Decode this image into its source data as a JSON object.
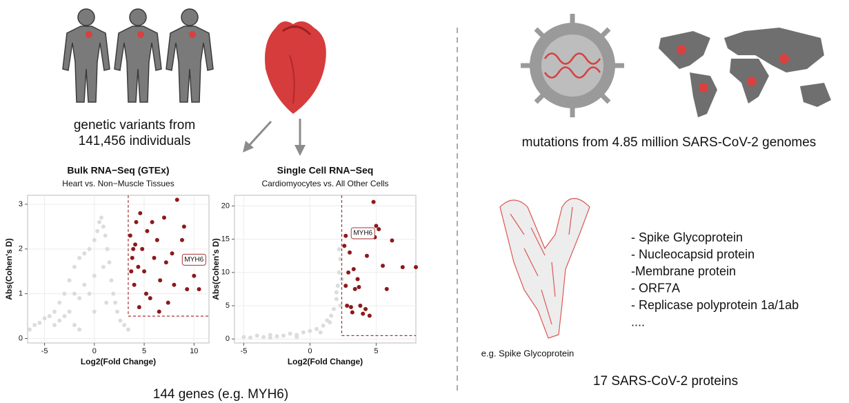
{
  "chart_data": [
    {
      "type": "scatter",
      "title": "Bulk RNA−Seq (GTEx)",
      "subtitle": "Heart vs. Non−Muscle Tissues",
      "xlabel": "Log2(Fold Change)",
      "ylabel": "Abs(Cohen's D)",
      "xlim": [
        -6.7,
        11.5
      ],
      "ylim": [
        -0.1,
        3.2
      ],
      "xticks": [
        -5,
        0,
        5,
        10
      ],
      "yticks": [
        0,
        1,
        2,
        3
      ],
      "grid": true,
      "series": [
        {
          "color": "#dcdcdc",
          "x": [
            -6.5,
            -6,
            -5.5,
            -5,
            -4.5,
            -4,
            -4,
            -3.5,
            -3.5,
            -3,
            -3,
            -2.5,
            -2.5,
            -2,
            -2,
            -2,
            -1.5,
            -1.5,
            -1,
            -1,
            -0.5,
            -0.5,
            0,
            0,
            0.3,
            0.5,
            0.7,
            0.9,
            0.9,
            1.1,
            1.3,
            1.5,
            1.7,
            1.9,
            2.1,
            2.3,
            2.6,
            3,
            3.4,
            -1.5,
            0,
            1.2
          ],
          "values": [
            0.2,
            0.3,
            0.35,
            0.45,
            0.5,
            0.6,
            0.3,
            0.8,
            0.4,
            1.0,
            0.5,
            1.3,
            0.6,
            1.6,
            1.0,
            0.3,
            1.8,
            0.9,
            1.9,
            1.2,
            2.0,
            1.0,
            2.2,
            1.4,
            2.4,
            2.6,
            2.7,
            2.5,
            1.6,
            2.3,
            2.0,
            1.7,
            1.3,
            1.0,
            0.8,
            0.6,
            0.4,
            0.3,
            0.2,
            0.2,
            0.6,
            0.8
          ]
        },
        {
          "color": "#8b1a1a",
          "x": [
            3.6,
            3.8,
            4.0,
            4.2,
            4.5,
            4.8,
            5.0,
            5.3,
            5.6,
            6.0,
            6.3,
            6.6,
            7.0,
            7.4,
            7.8,
            8.3,
            8.8,
            9.3,
            10,
            10.5,
            3.7,
            4.1,
            4.6,
            5.2,
            5.8,
            6.5,
            7.2,
            3.9,
            4.4,
            9.0,
            8.0
          ],
          "values": [
            2.3,
            1.8,
            1.2,
            2.6,
            0.7,
            2.0,
            1.5,
            2.4,
            0.9,
            1.8,
            2.2,
            1.3,
            2.7,
            0.8,
            1.9,
            3.1,
            2.2,
            1.1,
            1.4,
            1.1,
            1.5,
            2.1,
            2.8,
            1.0,
            2.6,
            0.6,
            1.7,
            2.0,
            1.6,
            2.5,
            1.2
          ]
        }
      ],
      "thresholds": {
        "x": 3.4,
        "y": 0.5,
        "color": "#a83232"
      },
      "annotation": {
        "text": "MYH6",
        "x": 10,
        "y": 1.76
      }
    },
    {
      "type": "scatter",
      "title": "Single Cell RNA−Seq",
      "subtitle": "Cardiomyocytes vs. All Other Cells",
      "xlabel": "Log2(Fold Change)",
      "ylabel": "Abs(Cohen's D)",
      "xlim": [
        -5.7,
        8.0
      ],
      "ylim": [
        -0.6,
        21.6
      ],
      "xticks": [
        -5,
        0,
        5
      ],
      "yticks": [
        0,
        5,
        10,
        15,
        20
      ],
      "grid": true,
      "series": [
        {
          "color": "#dcdcdc",
          "x": [
            -5,
            -4.5,
            -4,
            -3.5,
            -3,
            -2.5,
            -2,
            -1.5,
            -1,
            -0.5,
            0,
            0.5,
            1,
            1.3,
            1.6,
            1.8,
            2.0,
            2.1,
            2.2,
            2.3,
            2.2,
            2.0,
            1.5,
            -3,
            -1,
            0.8,
            2.3,
            2.4
          ],
          "values": [
            0.3,
            0.2,
            0.5,
            0.3,
            0.6,
            0.4,
            0.5,
            0.8,
            0.6,
            1.0,
            1.2,
            1.5,
            2.0,
            2.8,
            3.5,
            4.5,
            6,
            8,
            10,
            12,
            13.5,
            7,
            2.5,
            0.2,
            0.3,
            1.0,
            5,
            9
          ]
        },
        {
          "color": "#8b1a1a",
          "x": [
            2.6,
            2.7,
            2.8,
            3.0,
            3.2,
            3.4,
            3.6,
            3.8,
            4.0,
            4.2,
            4.5,
            4.8,
            5.0,
            5.2,
            5.5,
            5.8,
            6.2,
            7.0,
            8.0,
            2.9,
            3.3,
            3.7,
            4.3,
            4.9,
            2.7,
            3.1
          ],
          "values": [
            14,
            8,
            5,
            13,
            4,
            7.5,
            9,
            5,
            3.8,
            4.5,
            3.5,
            20.6,
            17,
            16.5,
            11,
            7.5,
            14.8,
            10.8,
            10.8,
            10,
            10.5,
            7.8,
            12.5,
            15.3,
            15.5,
            4.8
          ]
        }
      ],
      "thresholds": {
        "x": 2.4,
        "y": 0.5,
        "color": "#a83232"
      },
      "annotation": {
        "text": "MYH6",
        "x": 4.0,
        "y": 15.9
      }
    }
  ],
  "captions": {
    "variants": [
      "genetic variants from",
      "141,456 individuals"
    ],
    "genes": "144 genes (e.g. MYH6)",
    "mutations": "mutations from 4.85 million SARS-CoV-2 genomes",
    "protein_example": "e.g. Spike Glycoprotein",
    "protein_list": [
      "- Spike Glycoprotein",
      "- Nucleocapsid protein",
      "-Membrane protein",
      "- ORF7A",
      "- Replicase polyprotein 1a/1ab",
      "...."
    ],
    "proteins": "17 SARS-CoV-2 proteins"
  }
}
